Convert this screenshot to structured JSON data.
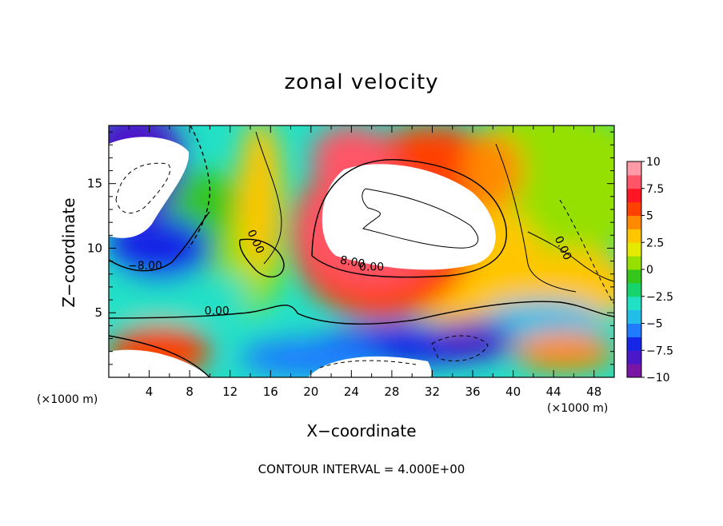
{
  "chart_data": {
    "type": "heatmap",
    "title": "zonal velocity",
    "xlabel": "X−coordinate",
    "ylabel": "Z−coordinate",
    "x_unit_label": "(×1000 m)",
    "footer_note": "CONTOUR INTERVAL = 4.000E+00",
    "xlim": [
      0,
      50
    ],
    "ylim": [
      0,
      19.5
    ],
    "x_ticks": [
      4,
      8,
      12,
      16,
      20,
      24,
      28,
      32,
      36,
      40,
      44,
      48
    ],
    "y_ticks": [
      5,
      10,
      15
    ],
    "colorbar": {
      "range": [
        -10,
        10
      ],
      "ticks": [
        10,
        7.5,
        5,
        2.5,
        0,
        -2.5,
        -5,
        -7.5,
        -10
      ],
      "tick_labels": [
        "10",
        "7.5",
        "5",
        "2.5",
        "0",
        "−2.5",
        "−5",
        "−7.5",
        "−10"
      ],
      "colors": [
        "#7a16a6",
        "#4b18c9",
        "#1626e6",
        "#1f7cff",
        "#22bde9",
        "#22e0c6",
        "#16d36b",
        "#34c61a",
        "#95e000",
        "#e6ea00",
        "#ffc600",
        "#ff8a00",
        "#ff4000",
        "#ff1622",
        "#ff5566",
        "#ff9aa6"
      ]
    },
    "contour_labels": [
      {
        "text": "0.00",
        "x": 10.7,
        "z": 5.1
      },
      {
        "text": "0.00",
        "x": 26.0,
        "z": 8.5
      },
      {
        "text": "0.00",
        "x": 14.5,
        "z": 10.5
      },
      {
        "text": "0.00",
        "x": 44.9,
        "z": 10.0
      },
      {
        "text": "−8.00",
        "x": 3.6,
        "z": 8.6
      },
      {
        "text": "8.00",
        "x": 24.1,
        "z": 8.9
      }
    ]
  }
}
